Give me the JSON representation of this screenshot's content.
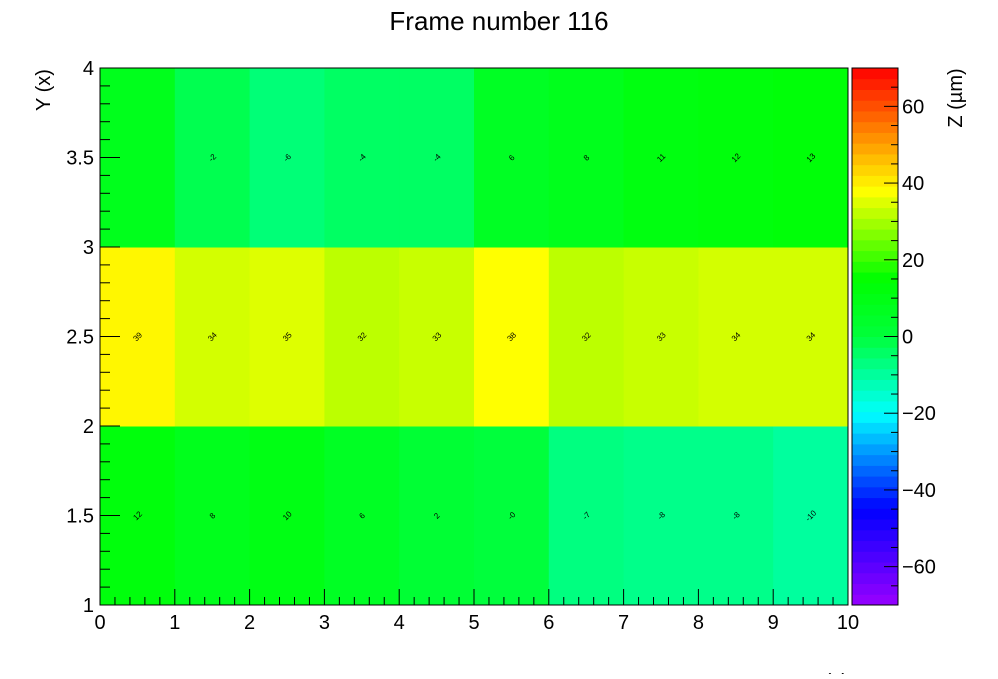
{
  "chart_data": {
    "type": "heatmap",
    "title": "Frame number 116",
    "xlabel": "X (x)",
    "ylabel": "Y (x)",
    "zlabel": "Z (µm)",
    "xlim": [
      0,
      10
    ],
    "ylim": [
      1,
      4
    ],
    "zlim": [
      -70,
      70
    ],
    "x_ticks": [
      "0",
      "1",
      "2",
      "3",
      "4",
      "5",
      "6",
      "7",
      "8",
      "9",
      "10"
    ],
    "y_ticks": [
      "1",
      "1.5",
      "2",
      "2.5",
      "3",
      "3.5",
      "4"
    ],
    "z_ticks": [
      "−60",
      "−40",
      "−20",
      "0",
      "20",
      "40",
      "60"
    ],
    "x_bin_edges": [
      0,
      1,
      2,
      3,
      4,
      5,
      6,
      7,
      8,
      9,
      10
    ],
    "y_bin_edges": [
      1,
      2,
      3,
      4
    ],
    "values": [
      [
        12,
        8,
        10,
        6,
        2,
        0,
        -7,
        -8,
        -8,
        -10
      ],
      [
        39,
        34,
        35,
        32,
        33,
        38,
        32,
        33,
        34,
        34
      ],
      [
        8,
        -2,
        -6,
        -4,
        -4,
        6,
        8,
        11,
        12,
        13
      ]
    ],
    "labels": [
      [
        "12",
        "8",
        "10",
        "6",
        "2",
        "-0",
        "-7",
        "-8",
        "-8",
        "-10"
      ],
      [
        "39",
        "34",
        "35",
        "32",
        "33",
        "38",
        "32",
        "33",
        "34",
        "34"
      ],
      [
        "",
        "-2",
        "-6",
        "-4",
        "-4",
        "6",
        "8",
        "11",
        "12",
        "13"
      ]
    ],
    "grid": false,
    "colormap": "rainbow",
    "palette_colors": [
      "#9900ff",
      "#0000ff",
      "#00ffff",
      "#00ff00",
      "#ffff00",
      "#ff0000"
    ]
  }
}
